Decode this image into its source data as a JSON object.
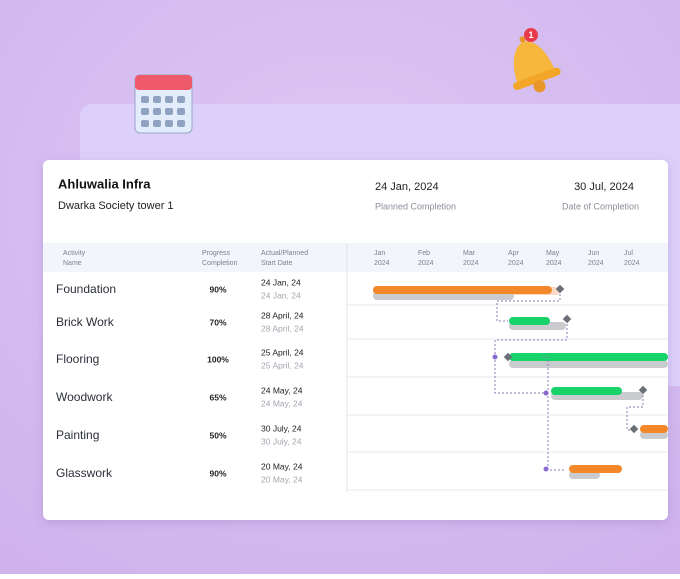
{
  "notification_count": "1",
  "header": {
    "company": "Ahluwalia Infra",
    "project": "Dwarka Society tower 1",
    "planned_date": "24 Jan, 2024",
    "planned_label": "Planned Completion",
    "completion_date": "30 Jul, 2024",
    "completion_label": "Date of Completion"
  },
  "table": {
    "columns": [
      [
        "Activity",
        "Name"
      ],
      [
        "Progress",
        "Completion"
      ],
      [
        "Actual/Planned",
        "Start Date"
      ]
    ],
    "months": [
      [
        "Jan",
        "2024"
      ],
      [
        "Feb",
        "2024"
      ],
      [
        "Mar",
        "2024"
      ],
      [
        "Apr",
        "2024"
      ],
      [
        "May",
        "2024"
      ],
      [
        "Jun",
        "2024"
      ],
      [
        "Jul",
        "2024"
      ]
    ],
    "rows": [
      {
        "activity": "Foundation",
        "progress": "90%",
        "actual": "24 Jan, 24",
        "planned": "24 Jan, 24"
      },
      {
        "activity": "Brick Work",
        "progress": "70%",
        "actual": "28 April, 24",
        "planned": "28 April, 24"
      },
      {
        "activity": "Flooring",
        "progress": "100%",
        "actual": "25 April, 24",
        "planned": "25 April, 24"
      },
      {
        "activity": "Woodwork",
        "progress": "65%",
        "actual": "24 May, 24",
        "planned": "24 May, 24"
      },
      {
        "activity": "Painting",
        "progress": "50%",
        "actual": "30 July, 24",
        "planned": "30 July, 24"
      },
      {
        "activity": "Glasswork",
        "progress": "90%",
        "actual": "20 May, 24",
        "planned": "20 May, 24"
      }
    ]
  }
}
